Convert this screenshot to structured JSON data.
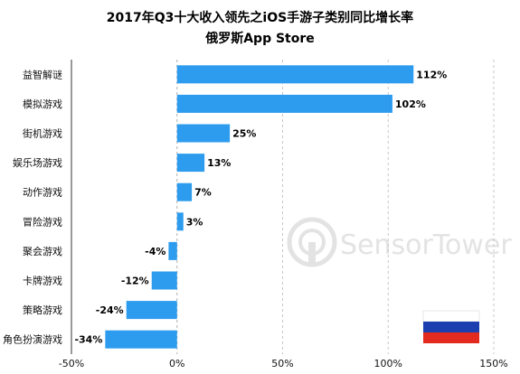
{
  "title_line1": "2017年Q3十大收入领先之iOS手游子类别同比增长率",
  "title_line2": "俄罗斯App Store",
  "watermark": {
    "brand": "SensorTower"
  },
  "flag": {
    "colors": [
      "#ffffff",
      "#1c3fb0",
      "#e32a1f"
    ]
  },
  "chart_data": {
    "type": "bar",
    "orientation": "horizontal",
    "title": "2017年Q3十大收入领先之iOS手游子类别同比增长率",
    "subtitle": "俄罗斯App Store",
    "categories": [
      "益智解谜",
      "模拟游戏",
      "街机游戏",
      "娱乐场游戏",
      "动作游戏",
      "冒险游戏",
      "聚会游戏",
      "卡牌游戏",
      "策略游戏",
      "角色扮演游戏"
    ],
    "values": [
      112,
      102,
      25,
      13,
      7,
      3,
      -4,
      -12,
      -24,
      -34
    ],
    "value_labels": [
      "112%",
      "102%",
      "25%",
      "13%",
      "7%",
      "3%",
      "-4%",
      "-12%",
      "-24%",
      "-34%"
    ],
    "xlim": [
      -50,
      150
    ],
    "xticks": [
      -50,
      0,
      50,
      100,
      150
    ],
    "xtick_labels": [
      "-50%",
      "0%",
      "50%",
      "100%",
      "150%"
    ],
    "grid": true,
    "bar_color": "#2d9cee"
  }
}
